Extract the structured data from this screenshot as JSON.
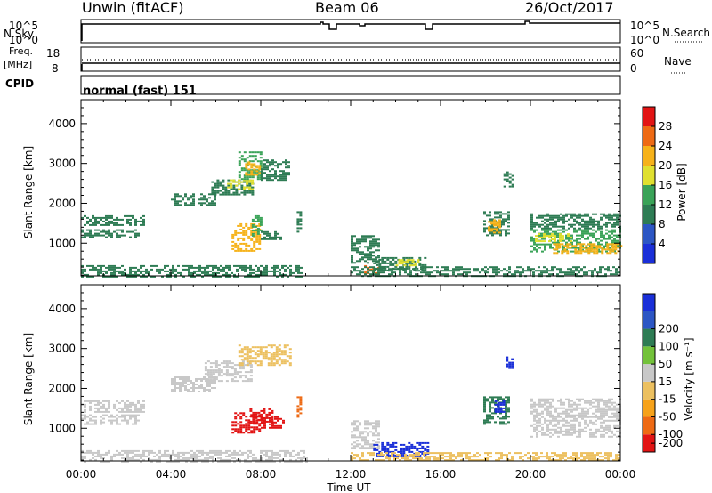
{
  "header": {
    "station": "Unwin (fitACF)",
    "beam": "Beam 06",
    "date": "26/Oct/2017"
  },
  "panels": {
    "nsky": {
      "label": "N.Sky",
      "ticks_left": [
        "10^5",
        "10^0"
      ],
      "ticks_right": [
        "10^5",
        "10^0"
      ],
      "right_label": "N.Search"
    },
    "freq": {
      "label_line1": "Freq.",
      "label_line2": "[MHz]",
      "ticks_left": [
        "18",
        "8"
      ],
      "ticks_right": [
        "60",
        "0"
      ],
      "right_label": "Nave"
    },
    "cpid": {
      "label": "CPID",
      "value": "normal (fast) 151"
    }
  },
  "colors": {
    "power": [
      "#1a2fd8",
      "#2c56c4",
      "#2e7c54",
      "#3aa358",
      "#e0e030",
      "#f6b21a",
      "#ee6a14",
      "#e21414"
    ],
    "velocity": [
      "#e21414",
      "#ee6a14",
      "#f6a21a",
      "#ecc060",
      "#c8c8c8",
      "#73c23a",
      "#2e7c54",
      "#2c56c4",
      "#1a2fd8"
    ]
  },
  "chart_data": [
    {
      "type": "heatmap",
      "name": "Power",
      "xlabel": "Time UT",
      "ylabel": "Slant Range [km]",
      "x_ticks": [
        "00:00",
        "04:00",
        "08:00",
        "12:00",
        "16:00",
        "20:00",
        "00:00"
      ],
      "x_range_hours": [
        0,
        24
      ],
      "ylim": [
        180,
        4600
      ],
      "y_ticks": [
        1000,
        2000,
        3000,
        4000
      ],
      "colorbar": {
        "label": "Power [dB]",
        "ticks": [
          4,
          8,
          12,
          16,
          20,
          24,
          28
        ],
        "range": [
          0,
          32
        ]
      },
      "regions": [
        {
          "t": [
            0.0,
            2.8
          ],
          "r": [
            1450,
            1700
          ],
          "level": 9
        },
        {
          "t": [
            0.0,
            2.6
          ],
          "r": [
            1150,
            1350
          ],
          "level": 8
        },
        {
          "t": [
            4.0,
            6.0
          ],
          "r": [
            1950,
            2250
          ],
          "level": 9
        },
        {
          "t": [
            5.8,
            7.6
          ],
          "r": [
            2200,
            2600
          ],
          "level": 11
        },
        {
          "t": [
            6.5,
            7.6
          ],
          "r": [
            2350,
            2600
          ],
          "level": 17
        },
        {
          "t": [
            7.0,
            8.0
          ],
          "r": [
            2600,
            3300
          ],
          "level": 12
        },
        {
          "t": [
            7.3,
            7.9
          ],
          "r": [
            2700,
            3050
          ],
          "level": 20
        },
        {
          "t": [
            8.0,
            9.3
          ],
          "r": [
            2600,
            3100
          ],
          "level": 10
        },
        {
          "t": [
            6.7,
            8.0
          ],
          "r": [
            800,
            1500
          ],
          "level": 22
        },
        {
          "t": [
            7.6,
            8.0
          ],
          "r": [
            1200,
            1700
          ],
          "level": 15
        },
        {
          "t": [
            8.0,
            8.9
          ],
          "r": [
            1100,
            1300
          ],
          "level": 10
        },
        {
          "t": [
            9.6,
            9.8
          ],
          "r": [
            1300,
            1800
          ],
          "level": 9
        },
        {
          "t": [
            0.0,
            9.8
          ],
          "r": [
            180,
            450
          ],
          "level": 8
        },
        {
          "t": [
            12.0,
            13.2
          ],
          "r": [
            500,
            1200
          ],
          "level": 8
        },
        {
          "t": [
            12.6,
            13.2
          ],
          "r": [
            250,
            450
          ],
          "level": 24
        },
        {
          "t": [
            13.0,
            15.3
          ],
          "r": [
            300,
            650
          ],
          "level": 10
        },
        {
          "t": [
            14.0,
            15.0
          ],
          "r": [
            450,
            600
          ],
          "level": 18
        },
        {
          "t": [
            12.0,
            24.0
          ],
          "r": [
            180,
            420
          ],
          "level": 8
        },
        {
          "t": [
            17.9,
            19.0
          ],
          "r": [
            1200,
            1800
          ],
          "level": 11
        },
        {
          "t": [
            18.1,
            18.6
          ],
          "r": [
            1250,
            1600
          ],
          "level": 20
        },
        {
          "t": [
            18.8,
            19.2
          ],
          "r": [
            2400,
            2800
          ],
          "level": 10
        },
        {
          "t": [
            20.0,
            24.0
          ],
          "r": [
            1350,
            1750
          ],
          "level": 9
        },
        {
          "t": [
            20.0,
            24.0
          ],
          "r": [
            800,
            1350
          ],
          "level": 14
        },
        {
          "t": [
            21.0,
            24.0
          ],
          "r": [
            750,
            1000
          ],
          "level": 22
        },
        {
          "t": [
            20.2,
            21.8
          ],
          "r": [
            1050,
            1250
          ],
          "level": 17
        }
      ]
    },
    {
      "type": "heatmap",
      "name": "Velocity",
      "xlabel": "Time UT",
      "ylabel": "Slant Range [km]",
      "x_ticks": [
        "00:00",
        "04:00",
        "08:00",
        "12:00",
        "16:00",
        "20:00",
        "00:00"
      ],
      "x_range_hours": [
        0,
        24
      ],
      "ylim": [
        180,
        4600
      ],
      "y_ticks": [
        1000,
        2000,
        3000,
        4000
      ],
      "colorbar": {
        "label": "Velocity [m s⁻¹]",
        "ticks": [
          200,
          100,
          50,
          15,
          -15,
          -50,
          -100,
          -200
        ]
      },
      "regions": [
        {
          "t": [
            0.0,
            2.8
          ],
          "r": [
            1400,
            1700
          ],
          "v": 0
        },
        {
          "t": [
            0.0,
            2.6
          ],
          "r": [
            1100,
            1350
          ],
          "v": 0
        },
        {
          "t": [
            4.0,
            6.0
          ],
          "r": [
            1900,
            2300
          ],
          "v": 0
        },
        {
          "t": [
            5.5,
            7.6
          ],
          "r": [
            2200,
            2700
          ],
          "v": 0
        },
        {
          "t": [
            7.0,
            9.3
          ],
          "r": [
            2600,
            3100
          ],
          "v": -20
        },
        {
          "t": [
            6.7,
            8.0
          ],
          "r": [
            900,
            1400
          ],
          "v": -220
        },
        {
          "t": [
            7.5,
            8.5
          ],
          "r": [
            1100,
            1500
          ],
          "v": -160
        },
        {
          "t": [
            8.0,
            9.0
          ],
          "r": [
            1000,
            1300
          ],
          "v": -200
        },
        {
          "t": [
            9.6,
            9.8
          ],
          "r": [
            1300,
            1800
          ],
          "v": -90
        },
        {
          "t": [
            0.0,
            10.0
          ],
          "r": [
            180,
            450
          ],
          "v": -10
        },
        {
          "t": [
            12.0,
            13.2
          ],
          "r": [
            500,
            1200
          ],
          "v": 0
        },
        {
          "t": [
            13.0,
            15.4
          ],
          "r": [
            300,
            650
          ],
          "v": 220
        },
        {
          "t": [
            12.0,
            24.0
          ],
          "r": [
            180,
            400
          ],
          "v": -30
        },
        {
          "t": [
            17.9,
            19.0
          ],
          "r": [
            1100,
            1800
          ],
          "v": 80
        },
        {
          "t": [
            18.4,
            18.8
          ],
          "r": [
            1400,
            1700
          ],
          "v": 200
        },
        {
          "t": [
            18.9,
            19.2
          ],
          "r": [
            2500,
            2800
          ],
          "v": 220
        },
        {
          "t": [
            20.0,
            24.0
          ],
          "r": [
            1300,
            1750
          ],
          "v": 0
        },
        {
          "t": [
            20.0,
            24.0
          ],
          "r": [
            800,
            1300
          ],
          "v": 0
        }
      ]
    }
  ]
}
